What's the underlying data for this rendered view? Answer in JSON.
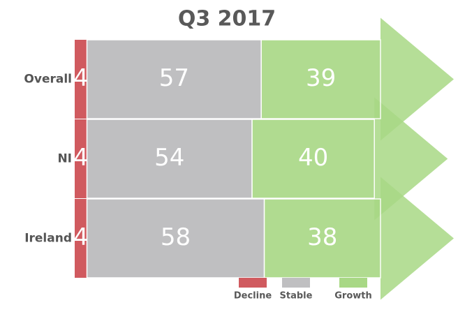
{
  "chart_data": {
    "type": "bar",
    "orientation": "horizontal",
    "stacked": true,
    "title": "Q3 2017",
    "categories": [
      "Overall",
      "NI",
      "Ireland"
    ],
    "series": [
      {
        "name": "Decline",
        "color": "#d05a5f",
        "values": [
          4,
          4,
          4
        ]
      },
      {
        "name": "Stable",
        "color": "#bfbfc1",
        "values": [
          57,
          54,
          58
        ]
      },
      {
        "name": "Growth",
        "color": "#a8d885",
        "values": [
          39,
          40,
          38
        ]
      }
    ],
    "legend": "bottom"
  }
}
